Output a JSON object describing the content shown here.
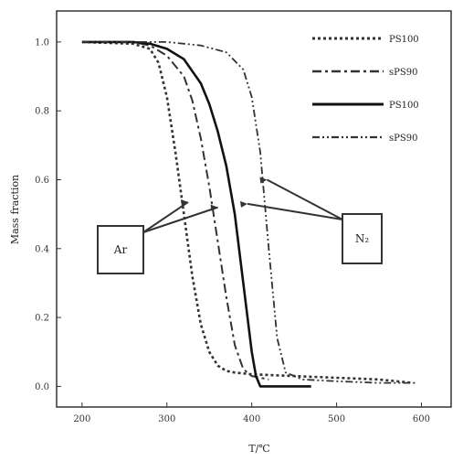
{
  "chart_data": {
    "type": "line",
    "xlabel": "T/℃",
    "ylabel": "Mass fraction",
    "xlim": [
      170,
      635
    ],
    "ylim": [
      -0.06,
      1.09
    ],
    "x_ticks": [
      200,
      300,
      400,
      500,
      600
    ],
    "y_ticks": [
      0.0,
      0.2,
      0.4,
      0.6,
      0.8,
      1.0
    ],
    "x_tick_labels": [
      "200",
      "300",
      "400",
      "500",
      "600"
    ],
    "y_tick_labels": [
      "0.0",
      "0.2",
      "0.4",
      "0.6",
      "0.8",
      "1.0"
    ],
    "grid": false,
    "legend_position": "top-right",
    "series": [
      {
        "name": "PS100",
        "color": "#333333",
        "dash": "3,3",
        "width": 2.6,
        "group": "Ar",
        "x": [
          200,
          260,
          280,
          290,
          300,
          310,
          320,
          330,
          340,
          350,
          360,
          370,
          380,
          400,
          450,
          500,
          550,
          590
        ],
        "y": [
          1.0,
          0.995,
          0.98,
          0.94,
          0.84,
          0.68,
          0.5,
          0.32,
          0.18,
          0.1,
          0.06,
          0.045,
          0.04,
          0.035,
          0.03,
          0.025,
          0.02,
          0.01
        ]
      },
      {
        "name": "sPS90",
        "color": "#333333",
        "dash": "10,4,3,4",
        "width": 2.0,
        "group": "Ar",
        "x": [
          200,
          260,
          280,
          300,
          320,
          330,
          340,
          350,
          360,
          370,
          380,
          390,
          400,
          420
        ],
        "y": [
          1.0,
          1.0,
          0.99,
          0.96,
          0.9,
          0.83,
          0.72,
          0.58,
          0.42,
          0.26,
          0.12,
          0.05,
          0.03,
          0.02
        ]
      },
      {
        "name": "PS100",
        "color": "#111111",
        "dash": "",
        "width": 2.6,
        "group": "N2",
        "x": [
          200,
          260,
          280,
          300,
          320,
          340,
          350,
          360,
          370,
          380,
          390,
          400,
          405,
          410,
          430,
          470
        ],
        "y": [
          1.0,
          1.0,
          0.995,
          0.98,
          0.95,
          0.88,
          0.82,
          0.74,
          0.64,
          0.5,
          0.3,
          0.1,
          0.03,
          0.0,
          0.0,
          0.0
        ]
      },
      {
        "name": "sPS90",
        "color": "#333333",
        "dash": "8,3,2,3,2,3",
        "width": 1.8,
        "group": "N2",
        "x": [
          200,
          300,
          340,
          370,
          390,
          400,
          410,
          420,
          430,
          440,
          460,
          500,
          550,
          595
        ],
        "y": [
          1.0,
          1.0,
          0.99,
          0.97,
          0.92,
          0.84,
          0.68,
          0.4,
          0.14,
          0.04,
          0.02,
          0.015,
          0.01,
          0.01
        ]
      }
    ],
    "annotations": [
      {
        "label": "Ar",
        "targets": [
          {
            "x": 325,
            "y": 0.535
          },
          {
            "x": 360,
            "y": 0.52
          }
        ]
      },
      {
        "label": "N₂",
        "targets": [
          {
            "x": 395,
            "y": 0.53
          },
          {
            "x": 418,
            "y": 0.6
          }
        ]
      }
    ]
  }
}
